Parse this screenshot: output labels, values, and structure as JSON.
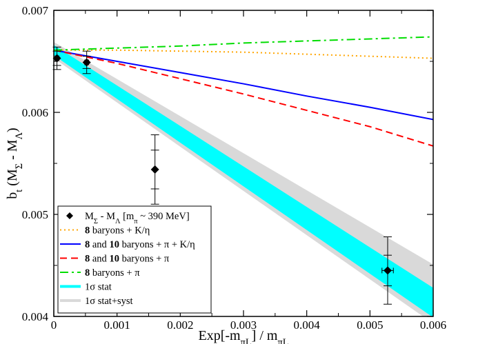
{
  "chart_data": {
    "type": "line",
    "xlabel": "Exp[-m_πL] / m_πL",
    "ylabel": "b_t (M_Σ - M_Λ)",
    "xlim": [
      0,
      0.006
    ],
    "ylim": [
      0.004,
      0.007
    ],
    "x_ticks": [
      0,
      0.001,
      0.002,
      0.003,
      0.004,
      0.005,
      0.006
    ],
    "x_tick_labels": [
      "0",
      "0.001",
      "0.002",
      "0.003",
      "0.004",
      "0.005",
      "0.006"
    ],
    "y_ticks": [
      0.004,
      0.005,
      0.006,
      0.007
    ],
    "y_tick_labels": [
      "0.004",
      "0.005",
      "0.006",
      "0.007"
    ],
    "grid": false,
    "legend_placement": "bottom-left",
    "points": {
      "label": "M_Σ - M_Λ [m_π ~ 390 MeV]",
      "marker": "diamond",
      "color": "#000000",
      "data": [
        {
          "x": 5e-05,
          "y": 0.00653,
          "xerr": 3e-05,
          "yerr_stat": 7e-05,
          "yerr_total": 0.00011
        },
        {
          "x": 0.00052,
          "y": 0.00649,
          "xerr": 3e-05,
          "yerr_stat": 6e-05,
          "yerr_total": 0.00011
        },
        {
          "x": 0.0016,
          "y": 0.00544,
          "xerr": 2e-05,
          "yerr_stat": 0.00019,
          "yerr_total": 0.00034
        },
        {
          "x": 0.00528,
          "y": 0.00445,
          "xerr": 9e-05,
          "yerr_stat": 0.00015,
          "yerr_total": 0.00033
        }
      ]
    },
    "series": [
      {
        "name": "8 baryons + K/η",
        "style": "dotted",
        "color": "#ffa500",
        "x": [
          0,
          0.001,
          0.002,
          0.003,
          0.004,
          0.005,
          0.006
        ],
        "y": [
          0.00661,
          0.00661,
          0.0066,
          0.00659,
          0.00657,
          0.00655,
          0.00653
        ]
      },
      {
        "name": "8 and 10 baryons + π + K/η",
        "style": "solid",
        "color": "#0000ff",
        "x": [
          0,
          0.001,
          0.002,
          0.003,
          0.004,
          0.005,
          0.006
        ],
        "y": [
          0.00661,
          0.0065,
          0.00639,
          0.00628,
          0.00616,
          0.00605,
          0.00593
        ]
      },
      {
        "name": "8 and 10 baryons + π",
        "style": "dashed",
        "color": "#ff0000",
        "x": [
          0,
          0.001,
          0.002,
          0.003,
          0.004,
          0.005,
          0.006
        ],
        "y": [
          0.00661,
          0.00648,
          0.00633,
          0.00618,
          0.00602,
          0.00586,
          0.00567
        ]
      },
      {
        "name": "8 baryons + π",
        "style": "dash-dot",
        "color": "#00dd00",
        "x": [
          0,
          0.001,
          0.002,
          0.003,
          0.004,
          0.005,
          0.006
        ],
        "y": [
          0.00661,
          0.00663,
          0.00665,
          0.00668,
          0.0067,
          0.00672,
          0.00674
        ]
      }
    ],
    "bands": [
      {
        "name": "1σ stat+syst",
        "color": "#d9d9d9",
        "x": [
          0,
          0.006
        ],
        "upper": [
          0.00669,
          0.00451
        ],
        "lower": [
          0.00653,
          0.00393
        ]
      },
      {
        "name": "1σ stat",
        "color": "#00ffff",
        "x": [
          0,
          0.006
        ],
        "upper": [
          0.00666,
          0.00428
        ],
        "lower": [
          0.00656,
          0.00399
        ]
      }
    ],
    "legend_entries": [
      {
        "key": "points",
        "text": "M_Σ - M_Λ [m_π ~ 390 MeV]"
      },
      {
        "key": "s0",
        "text": "8 baryons + K/η"
      },
      {
        "key": "s1",
        "text": "8 and 10 baryons + π + K/η"
      },
      {
        "key": "s2",
        "text": "8 and 10 baryons + π"
      },
      {
        "key": "s3",
        "text": "8 baryons + π"
      },
      {
        "key": "b1",
        "text": "1σ stat"
      },
      {
        "key": "b0",
        "text": "1σ stat+syst"
      }
    ]
  }
}
